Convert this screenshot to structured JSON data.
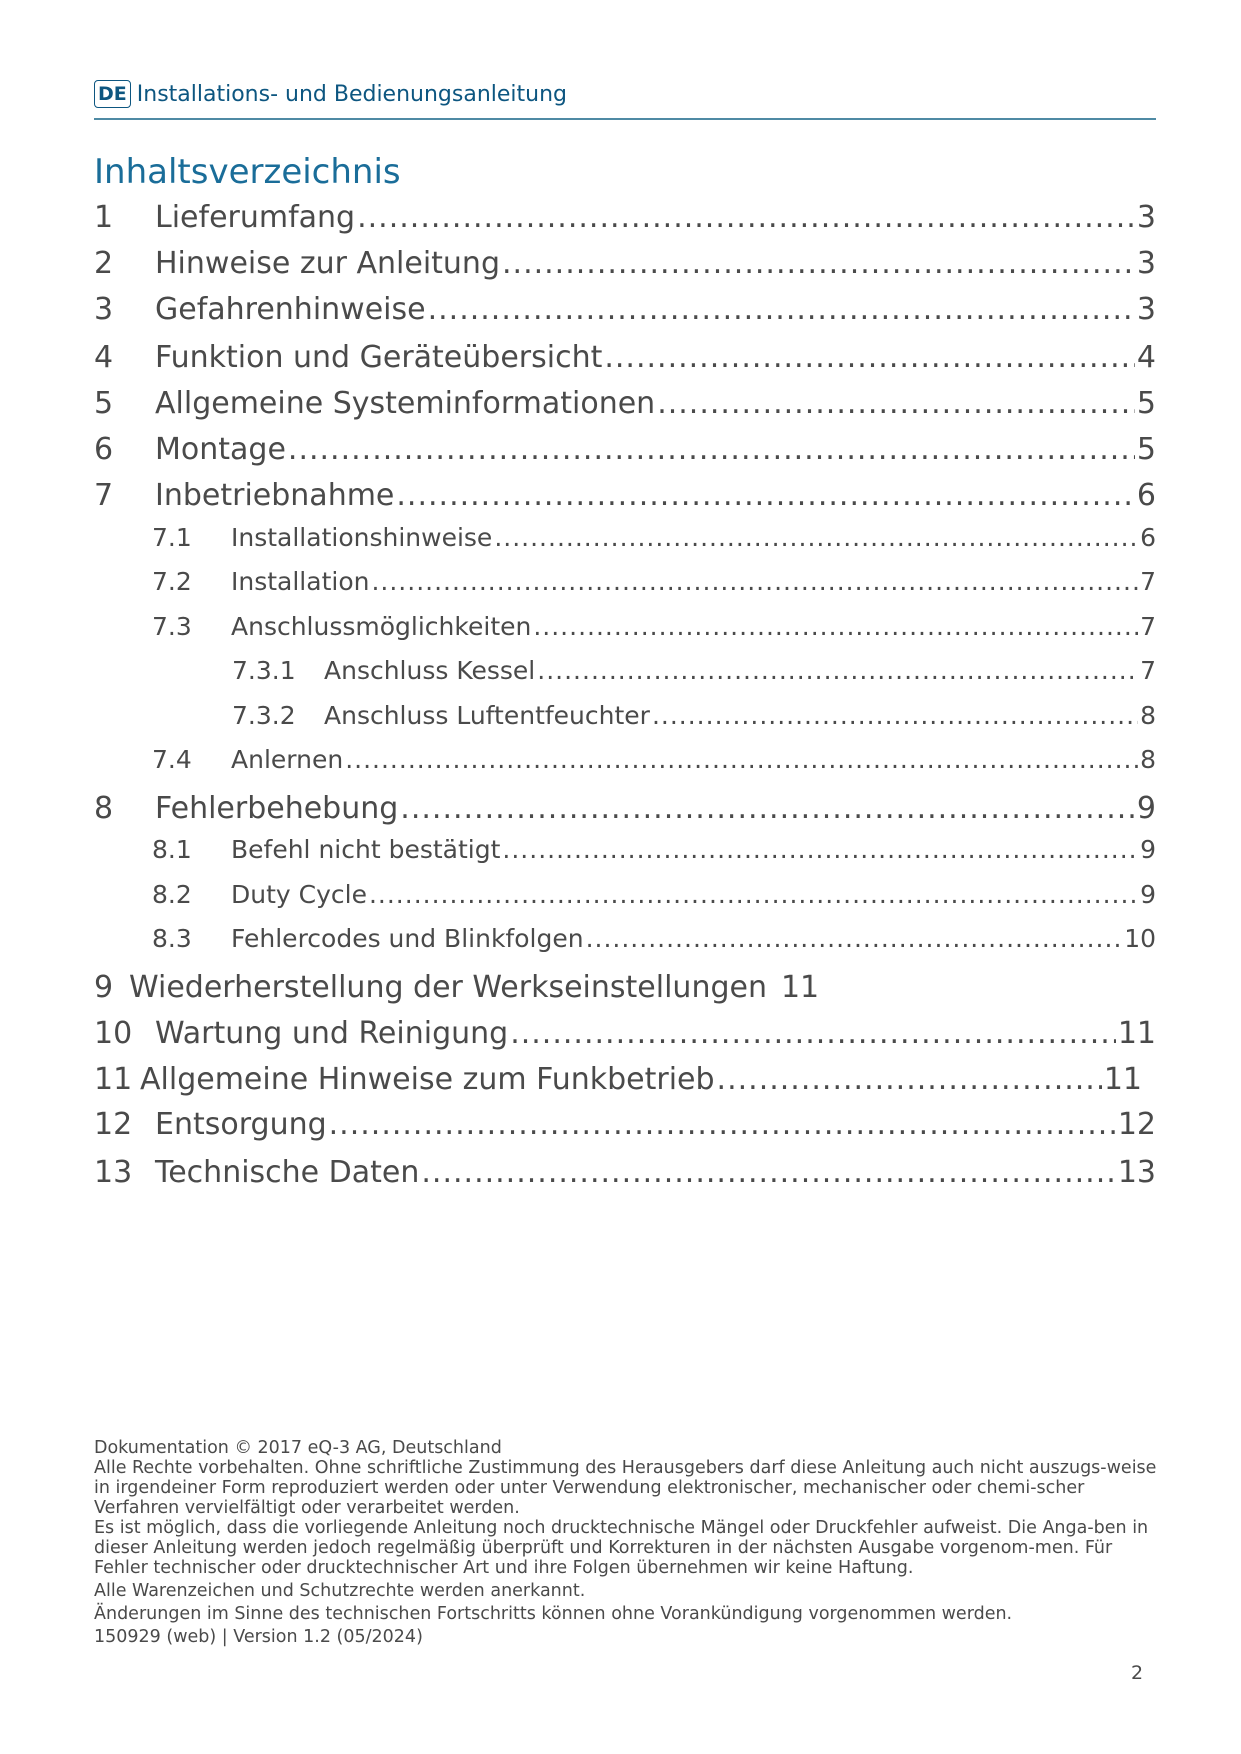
{
  "header": {
    "badge": "DE",
    "title": "Installations- und Bedienungsanleitung",
    "accent_color": "#0d5680"
  },
  "toc_title": "Inhaltsverzeichnis",
  "toc": [
    {
      "num": "1",
      "label": "Lieferumfang",
      "page": "3",
      "level": 1
    },
    {
      "num": "2",
      "label": "Hinweise zur Anleitung",
      "page": "3",
      "level": 1
    },
    {
      "num": "3",
      "label": "Gefahrenhinweise",
      "page": "3",
      "level": 1
    },
    {
      "num": "4",
      "label": "Funktion und Geräteübersicht",
      "page": "4",
      "level": 1
    },
    {
      "num": "5",
      "label": "Allgemeine Systeminformationen",
      "page": "5",
      "level": 1
    },
    {
      "num": "6",
      "label": "Montage",
      "page": "5",
      "level": 1
    },
    {
      "num": "7",
      "label": "Inbetriebnahme",
      "page": "6",
      "level": 1
    },
    {
      "num": "7.1",
      "label": "Installationshinweise",
      "page": "6",
      "level": 2
    },
    {
      "num": "7.2",
      "label": "Installation",
      "page": "7",
      "level": 2
    },
    {
      "num": "7.3",
      "label": "Anschlussmöglichkeiten",
      "page": "7",
      "level": 2
    },
    {
      "num": "7.3.1",
      "label": "Anschluss Kessel",
      "page": "7",
      "level": 3
    },
    {
      "num": "7.3.2",
      "label": "Anschluss Luftentfeuchter",
      "page": "8",
      "level": 3
    },
    {
      "num": "7.4",
      "label": "Anlernen",
      "page": "8",
      "level": 2
    },
    {
      "num": "8",
      "label": "Fehlerbehebung",
      "page": "9",
      "level": 1
    },
    {
      "num": "8.1",
      "label": "Befehl nicht bestätigt",
      "page": "9",
      "level": 2
    },
    {
      "num": "8.2",
      "label": "Duty Cycle",
      "page": "9",
      "level": 2
    },
    {
      "num": "8.3",
      "label": "Fehlercodes und Blinkfolgen",
      "page": "10",
      "level": 2
    },
    {
      "num": "9",
      "label": "Wiederherstellung der Werkseinstellungen",
      "page": "11",
      "level": 1,
      "no_leader": true
    },
    {
      "num": "10",
      "label": "Wartung und Reinigung",
      "page": "11",
      "level": 1
    },
    {
      "num": "11",
      "label": "Allgemeine Hinweise zum Funkbetrieb",
      "page": "11",
      "level": 1
    },
    {
      "num": "12",
      "label": "Entsorgung",
      "page": "12",
      "level": 1
    },
    {
      "num": "13",
      "label": "Technische Daten",
      "page": "13",
      "level": 1
    }
  ],
  "footer": {
    "lines": [
      "Dokumentation © 2017 eQ-3 AG, Deutschland",
      "Alle Rechte vorbehalten. Ohne schriftliche Zustimmung des Herausgebers darf diese Anleitung auch nicht auszugs-weise in irgendeiner Form reproduziert werden oder unter Verwendung elektronischer, mechanischer oder chemi-scher Verfahren vervielfältigt oder verarbeitet werden.",
      "Es ist möglich, dass die vorliegende Anleitung noch drucktechnische Mängel oder Druckfehler aufweist. Die Anga-ben in dieser Anleitung werden jedoch regelmäßig überprüft und Korrekturen in der nächsten Ausgabe vorgenom-men. Für Fehler technischer oder drucktechnischer Art und ihre Folgen übernehmen wir keine Haftung.",
      "Alle Warenzeichen und Schutzrechte werden anerkannt.",
      "Änderungen im Sinne des technischen Fortschritts können ohne Vorankündigung vorgenommen werden.",
      "150929 (web) | Version 1.2 (05/2024)"
    ]
  },
  "page_number": "2"
}
